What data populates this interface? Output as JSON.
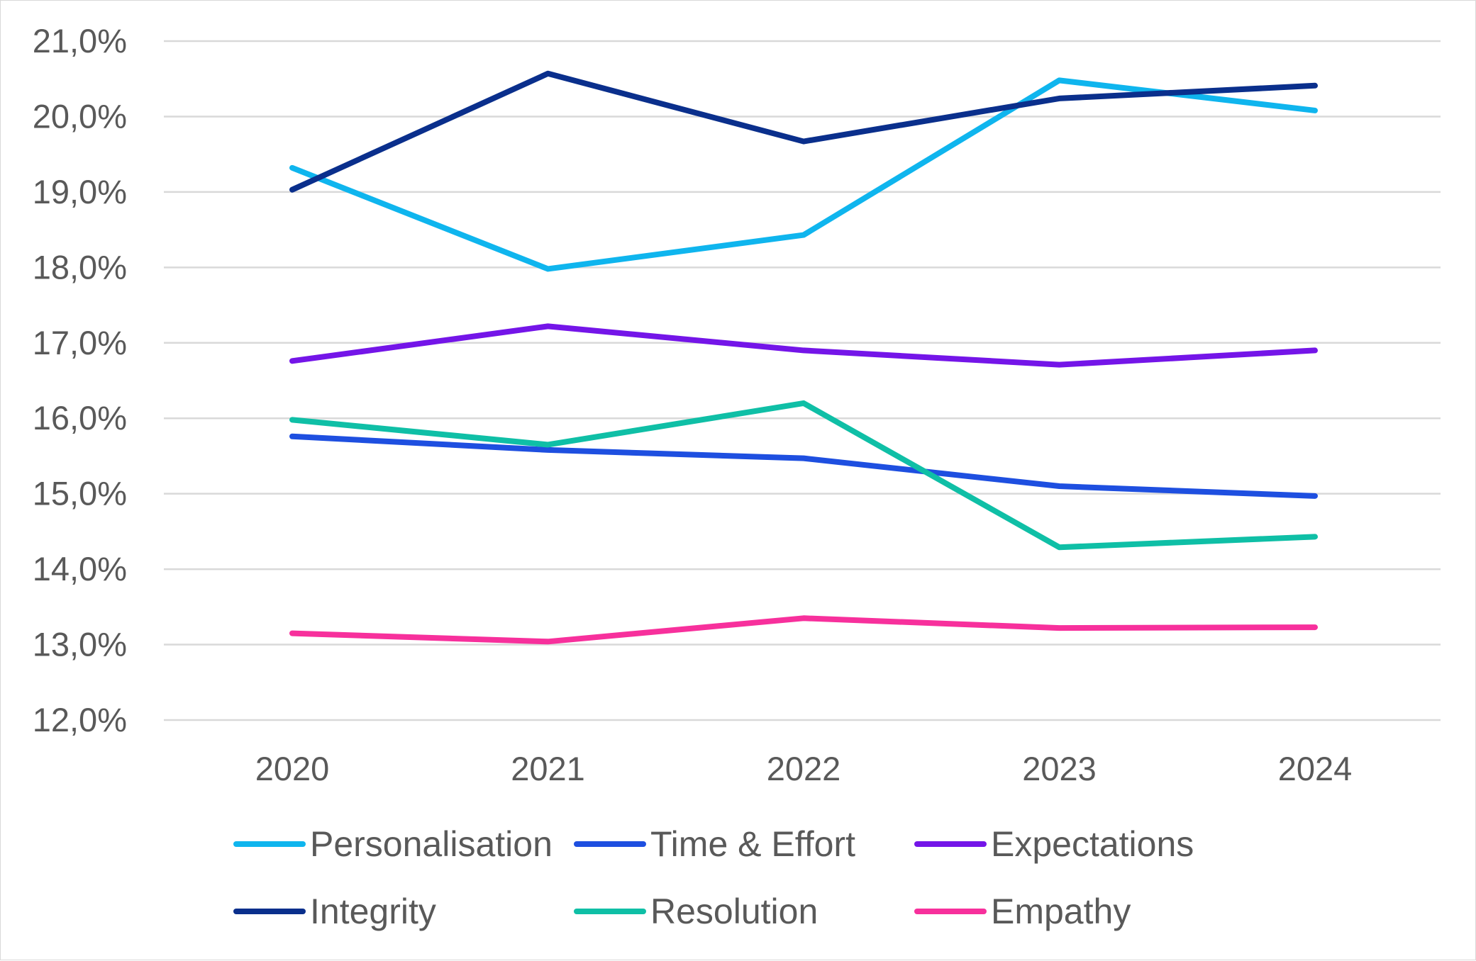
{
  "chart_data": {
    "type": "line",
    "title": "",
    "xlabel": "",
    "ylabel": "",
    "categories": [
      "2020",
      "2021",
      "2022",
      "2023",
      "2024"
    ],
    "ylim": [
      12.0,
      21.0
    ],
    "yticks": [
      12.0,
      13.0,
      14.0,
      15.0,
      16.0,
      17.0,
      18.0,
      19.0,
      20.0,
      21.0
    ],
    "ytick_labels": [
      "12,0%",
      "13,0%",
      "14,0%",
      "15,0%",
      "16,0%",
      "17,0%",
      "18,0%",
      "19,0%",
      "20,0%",
      "21,0%"
    ],
    "grid": true,
    "legend_position": "bottom",
    "series": [
      {
        "name": "Personalisation",
        "color": "#0fb5ee",
        "values": [
          19.32,
          17.98,
          18.43,
          20.48,
          20.08
        ]
      },
      {
        "name": "Time & Effort",
        "color": "#1e4fe0",
        "values": [
          15.76,
          15.58,
          15.47,
          15.1,
          14.97
        ]
      },
      {
        "name": "Expectations",
        "color": "#7415e8",
        "values": [
          16.76,
          17.22,
          16.9,
          16.71,
          16.9
        ]
      },
      {
        "name": "Integrity",
        "color": "#0a2f8c",
        "values": [
          19.03,
          20.57,
          19.67,
          20.24,
          20.41
        ]
      },
      {
        "name": "Resolution",
        "color": "#0fbfa6",
        "values": [
          15.98,
          15.65,
          16.2,
          14.29,
          14.43
        ]
      },
      {
        "name": "Empathy",
        "color": "#f7309c",
        "values": [
          13.15,
          13.04,
          13.35,
          13.22,
          13.23
        ]
      }
    ]
  }
}
